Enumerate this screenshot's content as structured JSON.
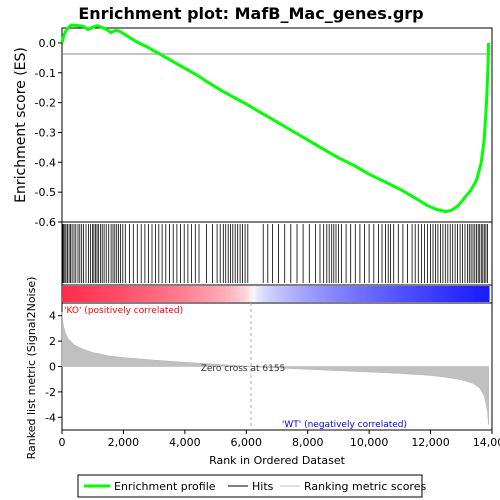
{
  "chart_data": {
    "type": "line",
    "title": "Enrichment plot: MafB_Mac_genes.grp",
    "ylabel_es": "Enrichment score (ES)",
    "ylabel_metric": "Ranked list metric (Signal2Noise)",
    "xlabel": "Rank in Ordered Dataset",
    "xlim": [
      0,
      14000
    ],
    "es_ylim": [
      -0.6,
      0.05
    ],
    "metric_ylim": [
      -5,
      5
    ],
    "es_ticks": [
      "0.0",
      "-0.1",
      "-0.2",
      "-0.3",
      "-0.4",
      "-0.5",
      "-0.6"
    ],
    "metric_ticks": [
      "4",
      "2",
      "0",
      "-2",
      "-4"
    ],
    "x_ticks": [
      "0",
      "2,000",
      "4,000",
      "6,000",
      "8,000",
      "10,000",
      "12,000",
      "14,000"
    ],
    "zero_cross_label": "Zero cross at 6155",
    "zero_cross_rank": 6155,
    "pos_label": "'KO' (positively correlated)",
    "neg_label": "'WT' (negatively correlated)",
    "colors": {
      "es_line": "#00ff00",
      "hit_line": "#000000",
      "metric_fill": "#c0c0c0",
      "pos_label": "#ff0000",
      "neg_label": "#0000ff"
    },
    "enrichment_profile": {
      "name": "Enrichment profile",
      "points": [
        [
          0,
          0.0
        ],
        [
          60,
          0.025
        ],
        [
          150,
          0.045
        ],
        [
          300,
          0.06
        ],
        [
          500,
          0.058
        ],
        [
          700,
          0.055
        ],
        [
          850,
          0.045
        ],
        [
          1000,
          0.052
        ],
        [
          1150,
          0.058
        ],
        [
          1300,
          0.052
        ],
        [
          1450,
          0.045
        ],
        [
          1600,
          0.035
        ],
        [
          1750,
          0.042
        ],
        [
          1900,
          0.038
        ],
        [
          2100,
          0.025
        ],
        [
          2400,
          0.005
        ],
        [
          2800,
          -0.015
        ],
        [
          3200,
          -0.038
        ],
        [
          3600,
          -0.062
        ],
        [
          4000,
          -0.085
        ],
        [
          4400,
          -0.108
        ],
        [
          4800,
          -0.135
        ],
        [
          5200,
          -0.16
        ],
        [
          5600,
          -0.183
        ],
        [
          6000,
          -0.205
        ],
        [
          6500,
          -0.235
        ],
        [
          7000,
          -0.265
        ],
        [
          7500,
          -0.295
        ],
        [
          8000,
          -0.325
        ],
        [
          8500,
          -0.355
        ],
        [
          9000,
          -0.385
        ],
        [
          9500,
          -0.41
        ],
        [
          10000,
          -0.44
        ],
        [
          10500,
          -0.465
        ],
        [
          11000,
          -0.49
        ],
        [
          11500,
          -0.52
        ],
        [
          11900,
          -0.545
        ],
        [
          12200,
          -0.558
        ],
        [
          12500,
          -0.565
        ],
        [
          12700,
          -0.56
        ],
        [
          12900,
          -0.545
        ],
        [
          13100,
          -0.52
        ],
        [
          13300,
          -0.495
        ],
        [
          13500,
          -0.46
        ],
        [
          13650,
          -0.4
        ],
        [
          13750,
          -0.32
        ],
        [
          13820,
          -0.2
        ],
        [
          13870,
          -0.08
        ],
        [
          13890,
          0.0
        ]
      ]
    },
    "hits": {
      "name": "Hits",
      "ranks": [
        20,
        50,
        90,
        130,
        180,
        230,
        280,
        330,
        390,
        450,
        520,
        580,
        640,
        700,
        780,
        860,
        930,
        990,
        1040,
        1090,
        1140,
        1190,
        1250,
        1310,
        1370,
        1440,
        1520,
        1600,
        1660,
        1720,
        1780,
        1840,
        1900,
        1980,
        2060,
        2200,
        2320,
        2450,
        2580,
        2700,
        2820,
        2930,
        3040,
        3150,
        3260,
        3380,
        3500,
        3620,
        3740,
        3860,
        3980,
        4100,
        4220,
        4340,
        4460,
        4700,
        4900,
        5050,
        5150,
        5250,
        5330,
        5410,
        5490,
        5560,
        5640,
        5720,
        5800,
        5880,
        5960,
        6050,
        6550,
        6700,
        6850,
        7050,
        7250,
        7450,
        7650,
        7850,
        8050,
        8250,
        8400,
        8520,
        8620,
        8700,
        8780,
        8850,
        8920,
        9000,
        9100,
        9250,
        9400,
        9550,
        9700,
        9850,
        10000,
        10150,
        10300,
        10420,
        10530,
        10620,
        10700,
        10800,
        10950,
        11100,
        11250,
        11400,
        11500,
        11600,
        11700,
        11800,
        11900,
        12000,
        12080,
        12160,
        12240,
        12320,
        12400,
        12480,
        12560,
        12640,
        12720,
        12800,
        12880,
        12960,
        13040,
        13120,
        13200,
        13260,
        13320,
        13380,
        13440,
        13500,
        13550,
        13600,
        13650,
        13700,
        13750,
        13800,
        13850
      ]
    },
    "ranked_metric": {
      "name": "Ranking metric scores",
      "points": [
        [
          0,
          4.3
        ],
        [
          40,
          3.3
        ],
        [
          100,
          2.7
        ],
        [
          200,
          2.2
        ],
        [
          400,
          1.7
        ],
        [
          700,
          1.35
        ],
        [
          1000,
          1.1
        ],
        [
          1500,
          0.85
        ],
        [
          2000,
          0.7
        ],
        [
          3000,
          0.5
        ],
        [
          4000,
          0.33
        ],
        [
          5000,
          0.18
        ],
        [
          6155,
          0.0
        ],
        [
          7000,
          -0.12
        ],
        [
          8000,
          -0.22
        ],
        [
          9000,
          -0.33
        ],
        [
          10000,
          -0.43
        ],
        [
          11000,
          -0.55
        ],
        [
          12000,
          -0.7
        ],
        [
          12500,
          -0.85
        ],
        [
          13000,
          -1.05
        ],
        [
          13400,
          -1.35
        ],
        [
          13600,
          -1.7
        ],
        [
          13750,
          -2.3
        ],
        [
          13850,
          -3.5
        ],
        [
          13890,
          -4.6
        ]
      ]
    },
    "legend": [
      "Enrichment profile",
      "Hits",
      "Ranking metric scores"
    ]
  }
}
